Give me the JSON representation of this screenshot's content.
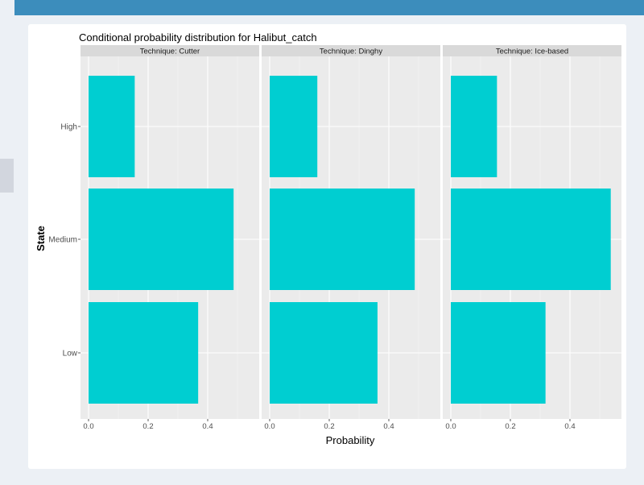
{
  "chart_data": {
    "type": "bar",
    "orientation": "horizontal",
    "title": "Conditional probability distribution for Halibut_catch",
    "xlabel": "Probability",
    "ylabel": "State",
    "categories": [
      "High",
      "Medium",
      "Low"
    ],
    "xticks": [
      "0.0",
      "0.2",
      "0.4"
    ],
    "xlim": [
      0,
      0.55
    ],
    "bar_color": "#00ced1",
    "grid": true,
    "facets": [
      {
        "label": "Technique: Cutter",
        "values": {
          "High": 0.155,
          "Medium": 0.487,
          "Low": 0.368
        }
      },
      {
        "label": "Technique: Dinghy",
        "values": {
          "High": 0.16,
          "Medium": 0.487,
          "Low": 0.362
        }
      },
      {
        "label": "Technique: Ice-based",
        "values": {
          "High": 0.155,
          "Medium": 0.537,
          "Low": 0.318
        }
      }
    ]
  }
}
